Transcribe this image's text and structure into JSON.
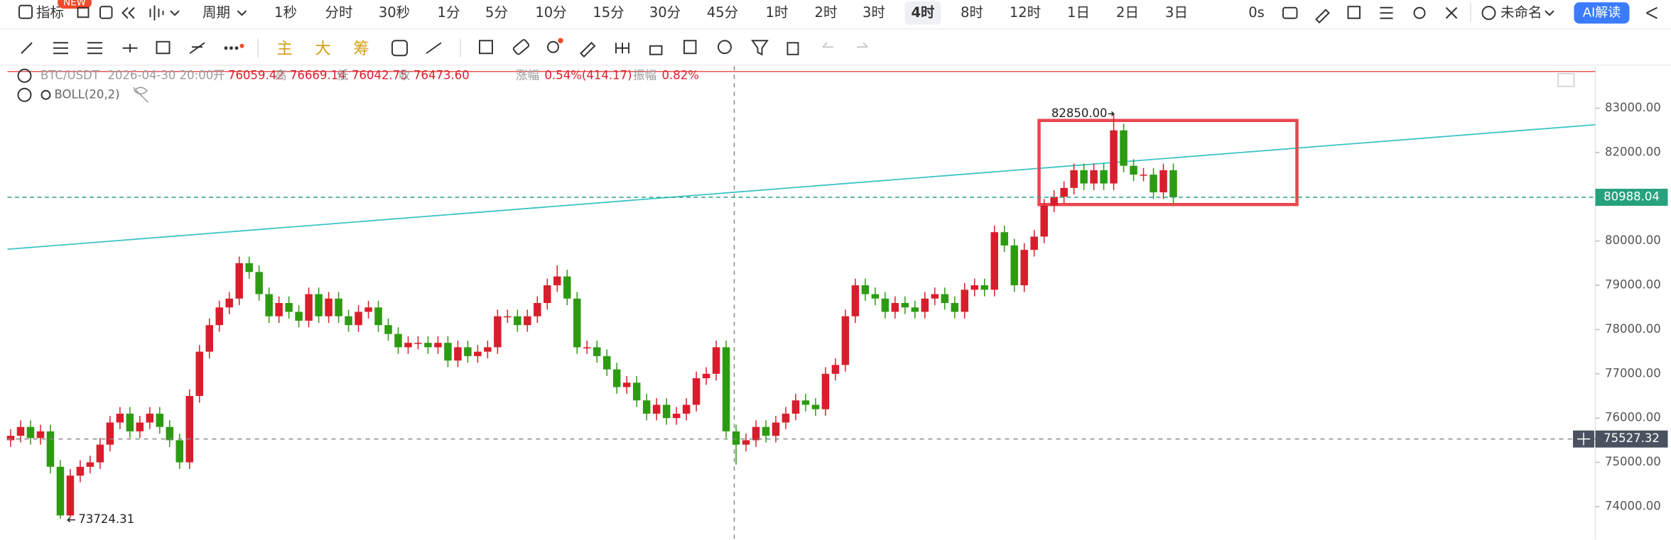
{
  "toolbar": {
    "indicator": "指标",
    "new_badge": "NEW",
    "period": "周期",
    "intervals": [
      "1秒",
      "分时",
      "30秒",
      "1分",
      "5分",
      "10分",
      "15分",
      "30分",
      "45分",
      "1时",
      "2时",
      "3时",
      "4时",
      "8时",
      "12时",
      "1日",
      "2日",
      "3日"
    ],
    "selected": "4时",
    "countdown": "0s",
    "layout_name": "未命名",
    "ai_button": "AI解读"
  },
  "drawing_toolbar": {
    "main": "主",
    "big": "大",
    "chip": "筹"
  },
  "info_bar": {
    "symbol": "BTC/USDT",
    "time": "2026-04-30 20:00",
    "open_label": "开",
    "open": "76059.42",
    "high_label": "高",
    "high": "76669.14",
    "low_label": "低",
    "low": "76042.75",
    "close_label": "收",
    "close": "76473.60",
    "change_label": "涨幅",
    "change": "0.54%(414.17)",
    "amplitude_label": "振幅",
    "amplitude": "0.82%",
    "indicator": "BOLL(20,2)"
  },
  "chart_data": {
    "type": "candlestick",
    "ylim": [
      73250,
      83950
    ],
    "yticks": [
      {
        "value": 83000,
        "label": "83000.00"
      },
      {
        "value": 82000,
        "label": "82000.00"
      },
      {
        "value": 81000,
        "label": "81000.00"
      },
      {
        "value": 80000,
        "label": "80000.00"
      },
      {
        "value": 79000,
        "label": "79000.00"
      },
      {
        "value": 78000,
        "label": "78000.00"
      },
      {
        "value": 77000,
        "label": "77000.00"
      },
      {
        "value": 76000,
        "label": "76000.00"
      },
      {
        "value": 75000,
        "label": "75000.00"
      },
      {
        "value": 74000,
        "label": "74000.00"
      }
    ],
    "up_color": "#d81e2c",
    "down_color": "#2d9b12",
    "last_price": {
      "value": 80988.04,
      "label": "80988.04"
    },
    "crosshair_price": {
      "value": 75527.32,
      "label": "75527.32"
    },
    "max_label": {
      "value": 82850,
      "label": "82850.00"
    },
    "min_label": {
      "value": 73724.31,
      "label": "73724.31"
    },
    "candles": [
      [
        75500,
        75750,
        75350,
        75600
      ],
      [
        75600,
        75950,
        75450,
        75800
      ],
      [
        75800,
        75950,
        75400,
        75550
      ],
      [
        75550,
        75850,
        75400,
        75700
      ],
      [
        75700,
        75850,
        74750,
        74900
      ],
      [
        74900,
        75050,
        73724.31,
        73800
      ],
      [
        73800,
        74850,
        73750,
        74700
      ],
      [
        74700,
        75050,
        74550,
        74900
      ],
      [
        74900,
        75150,
        74750,
        75000
      ],
      [
        75000,
        75550,
        74850,
        75400
      ],
      [
        75400,
        76050,
        75250,
        75900
      ],
      [
        75900,
        76250,
        75750,
        76100
      ],
      [
        76100,
        76250,
        75550,
        75700
      ],
      [
        75700,
        76050,
        75550,
        75900
      ],
      [
        75900,
        76250,
        75750,
        76100
      ],
      [
        76100,
        76250,
        75650,
        75800
      ],
      [
        75800,
        75950,
        75350,
        75500
      ],
      [
        75500,
        75650,
        74850,
        75000
      ],
      [
        75000,
        76650,
        74850,
        76500
      ],
      [
        76500,
        77650,
        76350,
        77500
      ],
      [
        77500,
        78250,
        77350,
        78100
      ],
      [
        78100,
        78650,
        77950,
        78500
      ],
      [
        78500,
        78850,
        78350,
        78700
      ],
      [
        78700,
        79650,
        78550,
        79500
      ],
      [
        79500,
        79650,
        79150,
        79300
      ],
      [
        79300,
        79450,
        78650,
        78800
      ],
      [
        78800,
        78950,
        78150,
        78300
      ],
      [
        78300,
        78750,
        78150,
        78600
      ],
      [
        78600,
        78750,
        78250,
        78400
      ],
      [
        78400,
        78550,
        78050,
        78200
      ],
      [
        78200,
        78950,
        78050,
        78800
      ],
      [
        78800,
        78950,
        78150,
        78300
      ],
      [
        78300,
        78850,
        78150,
        78700
      ],
      [
        78700,
        78850,
        78150,
        78300
      ],
      [
        78300,
        78450,
        77950,
        78100
      ],
      [
        78100,
        78550,
        77950,
        78400
      ],
      [
        78400,
        78650,
        78250,
        78500
      ],
      [
        78500,
        78650,
        77950,
        78100
      ],
      [
        78100,
        78250,
        77750,
        77900
      ],
      [
        77900,
        78050,
        77450,
        77600
      ],
      [
        77600,
        77850,
        77450,
        77700
      ],
      [
        77700,
        77850,
        77550,
        77700
      ],
      [
        77700,
        77850,
        77450,
        77600
      ],
      [
        77600,
        77850,
        77450,
        77700
      ],
      [
        77700,
        77850,
        77150,
        77300
      ],
      [
        77300,
        77750,
        77150,
        77600
      ],
      [
        77600,
        77750,
        77250,
        77400
      ],
      [
        77400,
        77650,
        77250,
        77500
      ],
      [
        77500,
        77750,
        77350,
        77600
      ],
      [
        77600,
        78450,
        77450,
        78300
      ],
      [
        78300,
        78450,
        78150,
        78300
      ],
      [
        78300,
        78450,
        77950,
        78100
      ],
      [
        78100,
        78450,
        77950,
        78300
      ],
      [
        78300,
        78750,
        78150,
        78600
      ],
      [
        78600,
        79150,
        78450,
        79000
      ],
      [
        79000,
        79450,
        78850,
        79200
      ],
      [
        79200,
        79350,
        78550,
        78700
      ],
      [
        78700,
        78850,
        77450,
        77600
      ],
      [
        77600,
        77750,
        77450,
        77600
      ],
      [
        77600,
        77750,
        77250,
        77400
      ],
      [
        77400,
        77550,
        76950,
        77100
      ],
      [
        77100,
        77250,
        76550,
        76700
      ],
      [
        76700,
        76950,
        76550,
        76800
      ],
      [
        76800,
        76950,
        76250,
        76400
      ],
      [
        76400,
        76550,
        75950,
        76100
      ],
      [
        76100,
        76450,
        75950,
        76300
      ],
      [
        76300,
        76450,
        75850,
        76000
      ],
      [
        76000,
        76250,
        75850,
        76100
      ],
      [
        76100,
        76450,
        75950,
        76300
      ],
      [
        76300,
        77050,
        76150,
        76900
      ],
      [
        76900,
        77150,
        76750,
        77000
      ],
      [
        77000,
        77750,
        76850,
        77600
      ],
      [
        77600,
        77750,
        75550,
        75700
      ],
      [
        75700,
        75850,
        74950,
        75400
      ],
      [
        75400,
        75650,
        75250,
        75500
      ],
      [
        75500,
        75950,
        75350,
        75800
      ],
      [
        75800,
        75950,
        75450,
        75600
      ],
      [
        75600,
        76050,
        75450,
        75900
      ],
      [
        75900,
        76250,
        75750,
        76100
      ],
      [
        76100,
        76550,
        75950,
        76400
      ],
      [
        76400,
        76550,
        76150,
        76300
      ],
      [
        76300,
        76450,
        76050,
        76200
      ],
      [
        76200,
        77150,
        76050,
        77000
      ],
      [
        77000,
        77350,
        76850,
        77200
      ],
      [
        77200,
        78450,
        77050,
        78300
      ],
      [
        78300,
        79150,
        78150,
        79000
      ],
      [
        79000,
        79150,
        78650,
        78800
      ],
      [
        78800,
        78950,
        78550,
        78700
      ],
      [
        78700,
        78850,
        78250,
        78400
      ],
      [
        78400,
        78750,
        78250,
        78600
      ],
      [
        78600,
        78750,
        78350,
        78500
      ],
      [
        78500,
        78650,
        78250,
        78400
      ],
      [
        78400,
        78850,
        78250,
        78700
      ],
      [
        78700,
        78950,
        78550,
        78800
      ],
      [
        78800,
        78950,
        78450,
        78600
      ],
      [
        78600,
        78750,
        78250,
        78400
      ],
      [
        78400,
        79050,
        78250,
        78900
      ],
      [
        78900,
        79150,
        78750,
        79000
      ],
      [
        79000,
        79150,
        78750,
        78900
      ],
      [
        78900,
        80350,
        78750,
        80200
      ],
      [
        80200,
        80350,
        79750,
        79900
      ],
      [
        79900,
        80050,
        78850,
        79000
      ],
      [
        79000,
        79950,
        78850,
        79800
      ],
      [
        79800,
        80250,
        79650,
        80100
      ],
      [
        80100,
        80950,
        79950,
        80800
      ],
      [
        80800,
        81150,
        80650,
        81000
      ],
      [
        81000,
        81350,
        80850,
        81200
      ],
      [
        81200,
        81750,
        81050,
        81600
      ],
      [
        81600,
        81750,
        81150,
        81300
      ],
      [
        81300,
        81750,
        81150,
        81600
      ],
      [
        81600,
        81750,
        81150,
        81300
      ],
      [
        81300,
        82850,
        81150,
        82500
      ],
      [
        82500,
        82650,
        81550,
        81700
      ],
      [
        81700,
        81850,
        81350,
        81500
      ],
      [
        81500,
        81650,
        81350,
        81500
      ],
      [
        81500,
        81650,
        80950,
        81100
      ],
      [
        81100,
        81750,
        80950,
        81600
      ],
      [
        81600,
        81750,
        80850,
        80988.04
      ]
    ]
  }
}
